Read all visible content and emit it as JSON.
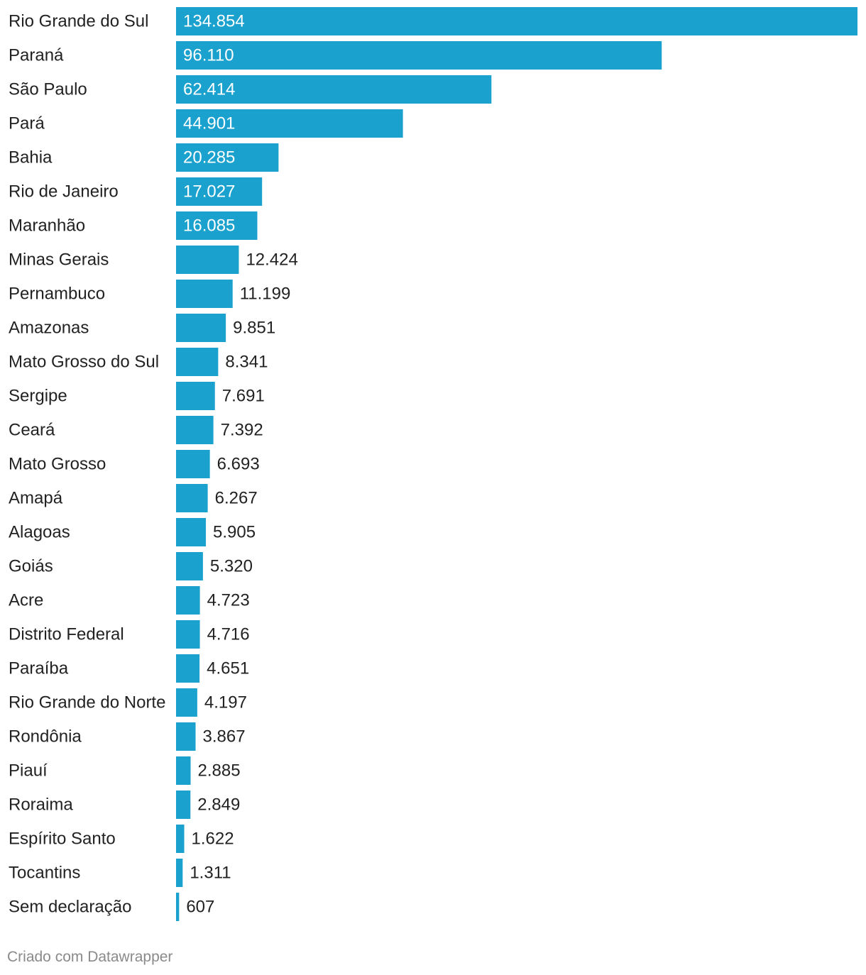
{
  "chart_data": {
    "type": "bar",
    "orientation": "horizontal",
    "categories": [
      "Rio Grande do Sul",
      "Paraná",
      "São Paulo",
      "Pará",
      "Bahia",
      "Rio de Janeiro",
      "Maranhão",
      "Minas Gerais",
      "Pernambuco",
      "Amazonas",
      "Mato Grosso do Sul",
      "Sergipe",
      "Ceará",
      "Mato Grosso",
      "Amapá",
      "Alagoas",
      "Goiás",
      "Acre",
      "Distrito Federal",
      "Paraíba",
      "Rio Grande do Norte",
      "Rondônia",
      "Piauí",
      "Roraima",
      "Espírito Santo",
      "Tocantins",
      "Sem declaração"
    ],
    "values": [
      134854,
      96110,
      62414,
      44901,
      20285,
      17027,
      16085,
      12424,
      11199,
      9851,
      8341,
      7691,
      7392,
      6693,
      6267,
      5905,
      5320,
      4723,
      4716,
      4651,
      4197,
      3867,
      2885,
      2849,
      1622,
      1311,
      607
    ],
    "value_labels": [
      "134.854",
      "96.110",
      "62.414",
      "44.901",
      "20.285",
      "17.027",
      "16.085",
      "12.424",
      "11.199",
      "9.851",
      "8.341",
      "7.691",
      "7.392",
      "6.693",
      "6.267",
      "5.905",
      "5.320",
      "4.723",
      "4.716",
      "4.651",
      "4.197",
      "3.867",
      "2.885",
      "2.849",
      "1.622",
      "1.311",
      "607"
    ],
    "xlim": [
      0,
      134854
    ],
    "bar_color": "#1aa1ce",
    "inside_label_color": "#ffffff",
    "outside_label_color": "#222222",
    "title": "",
    "xlabel": "",
    "ylabel": "",
    "grid": false,
    "legend": "none"
  },
  "footer": {
    "credit": "Criado com Datawrapper"
  }
}
